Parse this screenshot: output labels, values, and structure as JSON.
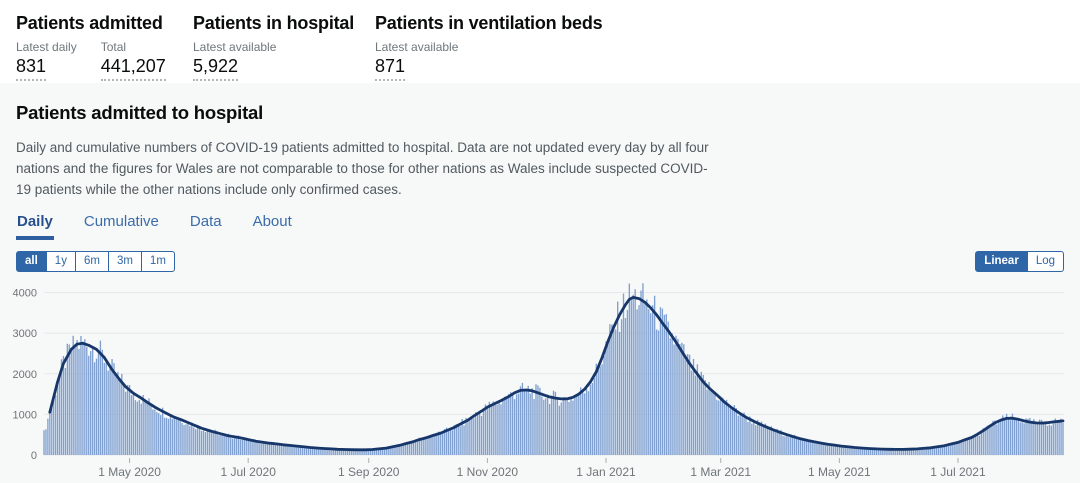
{
  "colors": {
    "accent": "#2f66a8",
    "tab_blue": "#3a6ca8",
    "tab_active": "#28508f",
    "bar": "#7fa0d1",
    "line": "#17376a",
    "grid": "#e6e8eb",
    "axis_text": "#6e7579",
    "tick_mark": "#a9aeb1",
    "card_bg": "#f7f8f8"
  },
  "summary": {
    "items": [
      {
        "title": "Patients admitted",
        "metrics": [
          {
            "label": "Latest daily",
            "value": "831"
          },
          {
            "label": "Total",
            "value": "441,207"
          }
        ]
      },
      {
        "title": "Patients in hospital",
        "metrics": [
          {
            "label": "Latest available",
            "value": "5,922"
          }
        ]
      },
      {
        "title": "Patients in ventilation beds",
        "metrics": [
          {
            "label": "Latest available",
            "value": "871"
          }
        ]
      }
    ]
  },
  "card": {
    "title": "Patients admitted to hospital",
    "description": "Daily and cumulative numbers of COVID-19 patients admitted to hospital. Data are not updated every day by all four nations and the figures for Wales are not comparable to those for other nations as Wales include suspected COVID-19 patients while the other nations include only confirmed cases.",
    "tabs": [
      {
        "label": "Daily",
        "active": true
      },
      {
        "label": "Cumulative",
        "active": false
      },
      {
        "label": "Data",
        "active": false
      },
      {
        "label": "About",
        "active": false
      }
    ],
    "range_buttons": [
      {
        "label": "all",
        "active": true
      },
      {
        "label": "1y",
        "active": false
      },
      {
        "label": "6m",
        "active": false
      },
      {
        "label": "3m",
        "active": false
      },
      {
        "label": "1m",
        "active": false
      }
    ],
    "scale_buttons": [
      {
        "label": "Linear",
        "active": true
      },
      {
        "label": "Log",
        "active": false
      }
    ]
  },
  "chart_data": {
    "type": "bar",
    "title": "Patients admitted to hospital (Daily)",
    "xlabel": "",
    "ylabel": "",
    "grid": true,
    "legend_position": "none",
    "ylim": [
      0,
      4300
    ],
    "yticks": [
      0,
      1000,
      2000,
      3000,
      4000
    ],
    "x_range": [
      "2020-03-18",
      "2021-08-24"
    ],
    "xticks": [
      {
        "label": "1 May 2020",
        "date": "2020-05-01"
      },
      {
        "label": "1 Jul 2020",
        "date": "2020-07-01"
      },
      {
        "label": "1 Sep 2020",
        "date": "2020-09-01"
      },
      {
        "label": "1 Nov 2020",
        "date": "2020-11-01"
      },
      {
        "label": "1 Jan 2021",
        "date": "2021-01-01"
      },
      {
        "label": "1 Mar 2021",
        "date": "2021-03-01"
      },
      {
        "label": "1 May 2021",
        "date": "2021-05-01"
      },
      {
        "label": "1 Jul 2021",
        "date": "2021-07-01"
      }
    ],
    "series": [
      {
        "name": "Daily admissions (bars)",
        "type": "bar",
        "color": "#7fa0d1",
        "jitter": 0.13,
        "max_value": 4250
      },
      {
        "name": "7-day rolling average (line)",
        "type": "line",
        "color": "#17376a",
        "start": "2020-03-21",
        "anchors": [
          [
            "2020-03-18",
            550
          ],
          [
            "2020-03-21",
            1050
          ],
          [
            "2020-03-25",
            1800
          ],
          [
            "2020-03-28",
            2250
          ],
          [
            "2020-04-01",
            2600
          ],
          [
            "2020-04-04",
            2730
          ],
          [
            "2020-04-07",
            2750
          ],
          [
            "2020-04-10",
            2700
          ],
          [
            "2020-04-14",
            2600
          ],
          [
            "2020-04-18",
            2400
          ],
          [
            "2020-04-22",
            2100
          ],
          [
            "2020-04-26",
            1850
          ],
          [
            "2020-04-29",
            1680
          ],
          [
            "2020-05-03",
            1520
          ],
          [
            "2020-05-07",
            1400
          ],
          [
            "2020-05-10",
            1300
          ],
          [
            "2020-05-14",
            1180
          ],
          [
            "2020-05-17",
            1100
          ],
          [
            "2020-05-21",
            1000
          ],
          [
            "2020-05-24",
            930
          ],
          [
            "2020-05-28",
            860
          ],
          [
            "2020-05-31",
            800
          ],
          [
            "2020-06-04",
            720
          ],
          [
            "2020-06-07",
            660
          ],
          [
            "2020-06-11",
            600
          ],
          [
            "2020-06-14",
            560
          ],
          [
            "2020-06-18",
            510
          ],
          [
            "2020-06-21",
            470
          ],
          [
            "2020-06-25",
            440
          ],
          [
            "2020-06-28",
            410
          ],
          [
            "2020-07-02",
            370
          ],
          [
            "2020-07-05",
            340
          ],
          [
            "2020-07-09",
            310
          ],
          [
            "2020-07-12",
            290
          ],
          [
            "2020-07-16",
            270
          ],
          [
            "2020-07-19",
            250
          ],
          [
            "2020-07-23",
            235
          ],
          [
            "2020-07-26",
            220
          ],
          [
            "2020-07-30",
            200
          ],
          [
            "2020-08-02",
            185
          ],
          [
            "2020-08-06",
            170
          ],
          [
            "2020-08-09",
            160
          ],
          [
            "2020-08-13",
            150
          ],
          [
            "2020-08-16",
            140
          ],
          [
            "2020-08-20",
            135
          ],
          [
            "2020-08-23",
            130
          ],
          [
            "2020-08-27",
            128
          ],
          [
            "2020-08-30",
            128
          ],
          [
            "2020-09-03",
            135
          ],
          [
            "2020-09-06",
            150
          ],
          [
            "2020-09-10",
            170
          ],
          [
            "2020-09-13",
            200
          ],
          [
            "2020-09-17",
            240
          ],
          [
            "2020-09-20",
            280
          ],
          [
            "2020-09-24",
            330
          ],
          [
            "2020-09-27",
            380
          ],
          [
            "2020-10-01",
            430
          ],
          [
            "2020-10-04",
            480
          ],
          [
            "2020-10-08",
            540
          ],
          [
            "2020-10-11",
            600
          ],
          [
            "2020-10-15",
            680
          ],
          [
            "2020-10-18",
            760
          ],
          [
            "2020-10-22",
            860
          ],
          [
            "2020-10-25",
            960
          ],
          [
            "2020-10-29",
            1080
          ],
          [
            "2020-11-01",
            1180
          ],
          [
            "2020-11-05",
            1270
          ],
          [
            "2020-11-08",
            1340
          ],
          [
            "2020-11-12",
            1440
          ],
          [
            "2020-11-15",
            1530
          ],
          [
            "2020-11-18",
            1590
          ],
          [
            "2020-11-21",
            1600
          ],
          [
            "2020-11-24",
            1580
          ],
          [
            "2020-11-27",
            1530
          ],
          [
            "2020-11-30",
            1480
          ],
          [
            "2020-12-03",
            1430
          ],
          [
            "2020-12-06",
            1400
          ],
          [
            "2020-12-09",
            1380
          ],
          [
            "2020-12-12",
            1380
          ],
          [
            "2020-12-15",
            1420
          ],
          [
            "2020-12-18",
            1500
          ],
          [
            "2020-12-21",
            1620
          ],
          [
            "2020-12-24",
            1800
          ],
          [
            "2020-12-27",
            2050
          ],
          [
            "2020-12-30",
            2400
          ],
          [
            "2021-01-02",
            2800
          ],
          [
            "2021-01-05",
            3150
          ],
          [
            "2021-01-08",
            3450
          ],
          [
            "2021-01-11",
            3700
          ],
          [
            "2021-01-13",
            3830
          ],
          [
            "2021-01-15",
            3880
          ],
          [
            "2021-01-18",
            3850
          ],
          [
            "2021-01-21",
            3760
          ],
          [
            "2021-01-24",
            3620
          ],
          [
            "2021-01-27",
            3450
          ],
          [
            "2021-01-30",
            3250
          ],
          [
            "2021-02-02",
            3060
          ],
          [
            "2021-02-06",
            2780
          ],
          [
            "2021-02-09",
            2550
          ],
          [
            "2021-02-13",
            2250
          ],
          [
            "2021-02-16",
            2050
          ],
          [
            "2021-02-20",
            1800
          ],
          [
            "2021-02-23",
            1650
          ],
          [
            "2021-02-27",
            1480
          ],
          [
            "2021-03-03",
            1300
          ],
          [
            "2021-03-07",
            1150
          ],
          [
            "2021-03-11",
            1020
          ],
          [
            "2021-03-14",
            930
          ],
          [
            "2021-03-18",
            830
          ],
          [
            "2021-03-21",
            760
          ],
          [
            "2021-03-25",
            680
          ],
          [
            "2021-03-28",
            620
          ],
          [
            "2021-04-01",
            550
          ],
          [
            "2021-04-04",
            500
          ],
          [
            "2021-04-08",
            440
          ],
          [
            "2021-04-11",
            400
          ],
          [
            "2021-04-15",
            355
          ],
          [
            "2021-04-18",
            325
          ],
          [
            "2021-04-22",
            290
          ],
          [
            "2021-04-25",
            265
          ],
          [
            "2021-04-29",
            240
          ],
          [
            "2021-05-02",
            220
          ],
          [
            "2021-05-06",
            200
          ],
          [
            "2021-05-09",
            185
          ],
          [
            "2021-05-13",
            170
          ],
          [
            "2021-05-16",
            160
          ],
          [
            "2021-05-20",
            150
          ],
          [
            "2021-05-23",
            145
          ],
          [
            "2021-05-27",
            140
          ],
          [
            "2021-05-30",
            138
          ],
          [
            "2021-06-03",
            138
          ],
          [
            "2021-06-06",
            142
          ],
          [
            "2021-06-10",
            150
          ],
          [
            "2021-06-13",
            162
          ],
          [
            "2021-06-17",
            178
          ],
          [
            "2021-06-20",
            200
          ],
          [
            "2021-06-24",
            230
          ],
          [
            "2021-06-27",
            265
          ],
          [
            "2021-07-01",
            310
          ],
          [
            "2021-07-04",
            365
          ],
          [
            "2021-07-08",
            430
          ],
          [
            "2021-07-11",
            510
          ],
          [
            "2021-07-14",
            600
          ],
          [
            "2021-07-17",
            700
          ],
          [
            "2021-07-20",
            790
          ],
          [
            "2021-07-23",
            860
          ],
          [
            "2021-07-26",
            900
          ],
          [
            "2021-07-29",
            905
          ],
          [
            "2021-08-01",
            880
          ],
          [
            "2021-08-04",
            840
          ],
          [
            "2021-08-07",
            810
          ],
          [
            "2021-08-10",
            790
          ],
          [
            "2021-08-13",
            785
          ],
          [
            "2021-08-16",
            795
          ],
          [
            "2021-08-19",
            815
          ],
          [
            "2021-08-22",
            830
          ],
          [
            "2021-08-24",
            840
          ]
        ]
      }
    ]
  }
}
